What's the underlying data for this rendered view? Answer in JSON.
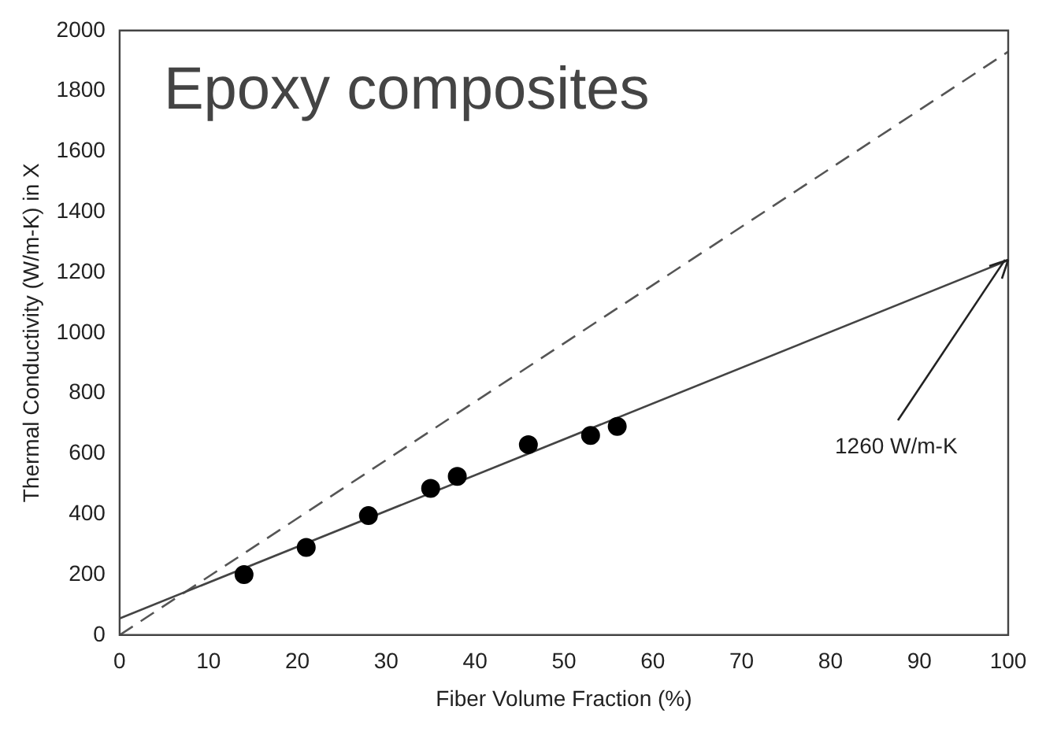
{
  "chart_data": {
    "type": "scatter",
    "title": "Epoxy composites",
    "xlabel": "Fiber Volume Fraction (%)",
    "ylabel": "Thermal Conductivity (W/m-K) in X",
    "series": [
      {
        "type": "scatter",
        "color": "#000000",
        "marker": "circle",
        "x": [
          14,
          21,
          28,
          35,
          38,
          46,
          53,
          56
        ],
        "values": [
          200,
          290,
          395,
          485,
          525,
          630,
          660,
          690
        ]
      },
      {
        "type": "line",
        "color": "#444444",
        "line_style": "solid",
        "marker": "none",
        "x": [
          0,
          100
        ],
        "values": [
          55,
          1240
        ]
      },
      {
        "type": "line",
        "color": "#555555",
        "line_style": "dashed",
        "marker": "none",
        "x": [
          0,
          100
        ],
        "values": [
          0,
          1930
        ]
      }
    ],
    "annotations": [
      {
        "text": "1260 W/m-K",
        "x": 100,
        "y": 1240
      }
    ],
    "xlim": [
      0,
      100
    ],
    "xticks": [
      0,
      10,
      20,
      30,
      40,
      50,
      60,
      70,
      80,
      90,
      100
    ],
    "ylim": [
      0,
      2000
    ],
    "yticks": [
      0,
      200,
      400,
      600,
      800,
      1000,
      1200,
      1400,
      1600,
      1800,
      2000
    ],
    "grid": false,
    "legend": false
  }
}
